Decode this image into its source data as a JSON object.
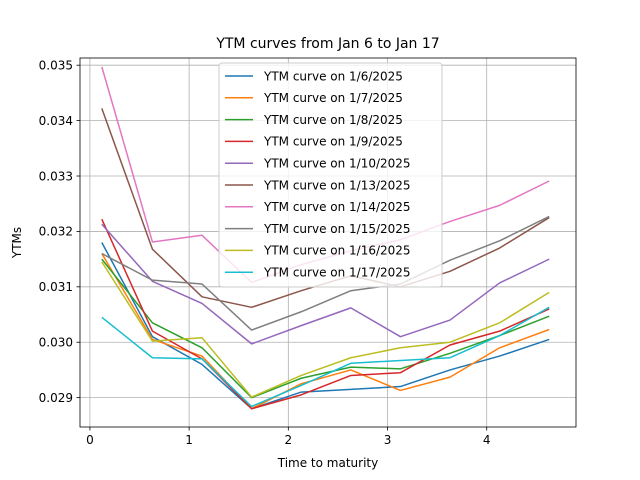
{
  "chart_data": {
    "type": "line",
    "title": "YTM curves from Jan 6 to Jan 17",
    "xlabel": "Time to maturity",
    "ylabel": "YTMs",
    "xlim": [
      -0.1,
      4.9
    ],
    "ylim": [
      0.02847,
      0.03513
    ],
    "xticks": [
      0,
      1,
      2,
      3,
      4
    ],
    "yticks": [
      0.029,
      0.03,
      0.031,
      0.032,
      0.033,
      0.034,
      0.035
    ],
    "grid": true,
    "legend_position": "top-center",
    "x": [
      0.12,
      0.63,
      1.13,
      1.63,
      2.13,
      2.63,
      3.13,
      3.63,
      4.13,
      4.63
    ],
    "series": [
      {
        "name": "YTM curve on 1/6/2025",
        "color": "#1f77b4",
        "values": [
          0.0318,
          0.0301,
          0.0296,
          0.0288,
          0.0291,
          0.02915,
          0.0292,
          0.0295,
          0.02975,
          0.03005
        ]
      },
      {
        "name": "YTM curve on 1/7/2025",
        "color": "#ff7f0e",
        "values": [
          0.0316,
          0.03005,
          0.02975,
          0.0288,
          0.02925,
          0.0295,
          0.02913,
          0.02937,
          0.0299,
          0.03023
        ]
      },
      {
        "name": "YTM curve on 1/8/2025",
        "color": "#2ca02c",
        "values": [
          0.0315,
          0.03035,
          0.0299,
          0.029,
          0.02935,
          0.02955,
          0.02952,
          0.0298,
          0.03012,
          0.03047
        ]
      },
      {
        "name": "YTM curve on 1/9/2025",
        "color": "#d62728",
        "values": [
          0.03222,
          0.0302,
          0.0297,
          0.0288,
          0.02905,
          0.0294,
          0.02945,
          0.02995,
          0.0302,
          0.0306
        ]
      },
      {
        "name": "YTM curve on 1/10/2025",
        "color": "#9467bd",
        "values": [
          0.03213,
          0.0311,
          0.0307,
          0.02997,
          0.0303,
          0.03062,
          0.0301,
          0.0304,
          0.03107,
          0.0315
        ]
      },
      {
        "name": "YTM curve on 1/13/2025",
        "color": "#8c564b",
        "values": [
          0.03422,
          0.03168,
          0.03082,
          0.03063,
          0.03093,
          0.0312,
          0.031,
          0.03128,
          0.0317,
          0.03225
        ]
      },
      {
        "name": "YTM curve on 1/14/2025",
        "color": "#e377c2",
        "values": [
          0.03497,
          0.03181,
          0.03193,
          0.03108,
          0.0314,
          0.03165,
          0.03185,
          0.03218,
          0.03247,
          0.03291
        ]
      },
      {
        "name": "YTM curve on 1/15/2025",
        "color": "#7f7f7f",
        "values": [
          0.0316,
          0.03112,
          0.03105,
          0.03022,
          0.03055,
          0.03093,
          0.03105,
          0.03148,
          0.03183,
          0.03227
        ]
      },
      {
        "name": "YTM curve on 1/16/2025",
        "color": "#bcbd22",
        "values": [
          0.03145,
          0.03002,
          0.03008,
          0.02901,
          0.0294,
          0.02972,
          0.0299,
          0.03,
          0.03035,
          0.0309
        ]
      },
      {
        "name": "YTM curve on 1/17/2025",
        "color": "#17becf",
        "values": [
          0.03045,
          0.02972,
          0.0297,
          0.02884,
          0.02922,
          0.02962,
          0.02967,
          0.02972,
          0.03012,
          0.03063
        ]
      }
    ]
  }
}
